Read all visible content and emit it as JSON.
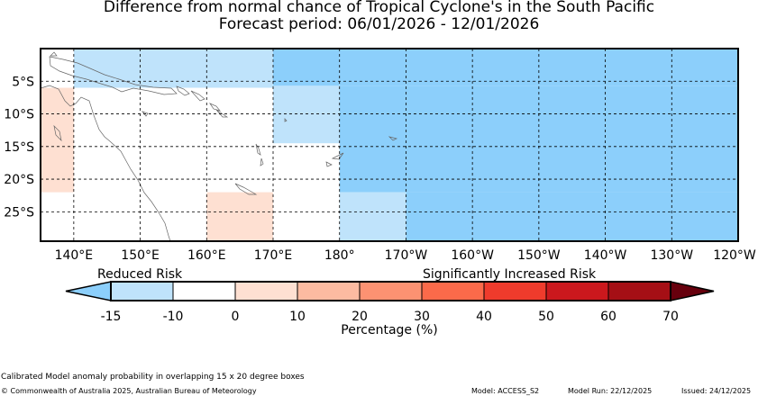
{
  "title": {
    "line1": "Difference from normal chance of Tropical Cyclone's in the South Pacific",
    "line2": "Forecast period: 06/01/2026 - 12/01/2026"
  },
  "map": {
    "lon_range": [
      135,
      240
    ],
    "lat_range": [
      -29.5,
      0
    ],
    "lon_ticks": [
      {
        "value": 140,
        "label": "140°E"
      },
      {
        "value": 150,
        "label": "150°E"
      },
      {
        "value": 160,
        "label": "160°E"
      },
      {
        "value": 170,
        "label": "170°E"
      },
      {
        "value": 180,
        "label": "180°"
      },
      {
        "value": 190,
        "label": "170°W"
      },
      {
        "value": 200,
        "label": "160°W"
      },
      {
        "value": 210,
        "label": "150°W"
      },
      {
        "value": 220,
        "label": "140°W"
      },
      {
        "value": 230,
        "label": "130°W"
      },
      {
        "value": 240,
        "label": "120°W"
      }
    ],
    "lat_ticks": [
      {
        "value": -5,
        "label": "5°S"
      },
      {
        "value": -10,
        "label": "10°S"
      },
      {
        "value": -15,
        "label": "15°S"
      },
      {
        "value": -20,
        "label": "20°S"
      },
      {
        "value": -25,
        "label": "25°S"
      }
    ],
    "cells": [
      {
        "lon": [
          135,
          140
        ],
        "lat": [
          -22,
          -6
        ],
        "color": "#fee0d2"
      },
      {
        "lon": [
          140,
          170
        ],
        "lat": [
          -6,
          0
        ],
        "color": "#bfe3fb"
      },
      {
        "lon": [
          170,
          180
        ],
        "lat": [
          -5.7,
          0
        ],
        "color": "#8ccffb"
      },
      {
        "lon": [
          170,
          180
        ],
        "lat": [
          -14.5,
          -5.7
        ],
        "color": "#bfe3fb"
      },
      {
        "lon": [
          180,
          240
        ],
        "lat": [
          -5.7,
          0
        ],
        "color": "#8ccffb"
      },
      {
        "lon": [
          180,
          240
        ],
        "lat": [
          -22,
          -5.7
        ],
        "color": "#8ccffb"
      },
      {
        "lon": [
          180,
          190
        ],
        "lat": [
          -29.5,
          -22
        ],
        "color": "#bfe3fb"
      },
      {
        "lon": [
          190,
          240
        ],
        "lat": [
          -29.5,
          -22
        ],
        "color": "#8ccffb"
      },
      {
        "lon": [
          160,
          170
        ],
        "lat": [
          -29.5,
          -22
        ],
        "color": "#fee0d2"
      }
    ]
  },
  "colorbar": {
    "label_reduced": "Reduced Risk",
    "label_increased": "Significantly Increased Risk",
    "axis_label": "Percentage (%)",
    "under_color": "#8ccffb",
    "over_color": "#67000d",
    "bins": [
      {
        "from": -15,
        "to": -10,
        "color": "#bfe3fb"
      },
      {
        "from": -10,
        "to": 0,
        "color": "#ffffff"
      },
      {
        "from": 0,
        "to": 10,
        "color": "#fee0d2"
      },
      {
        "from": 10,
        "to": 20,
        "color": "#fcbba1"
      },
      {
        "from": 20,
        "to": 30,
        "color": "#fc9272"
      },
      {
        "from": 30,
        "to": 40,
        "color": "#fb6a4a"
      },
      {
        "from": 40,
        "to": 50,
        "color": "#ef3b2c"
      },
      {
        "from": 50,
        "to": 60,
        "color": "#cb181d"
      },
      {
        "from": 60,
        "to": 70,
        "color": "#a50f15"
      }
    ],
    "tick_labels": [
      "-15",
      "-10",
      "0",
      "10",
      "20",
      "30",
      "40",
      "50",
      "60",
      "70"
    ]
  },
  "footer": {
    "note": "Calibrated Model anomaly probability in overlapping 15 x 20 degree boxes",
    "copyright": "© Commonwealth of Australia 2025, Australian Bureau of Meteorology",
    "model": "Model: ACCESS_S2",
    "model_run": "Model Run: 22/12/2025",
    "issued": "Issued: 24/12/2025"
  }
}
